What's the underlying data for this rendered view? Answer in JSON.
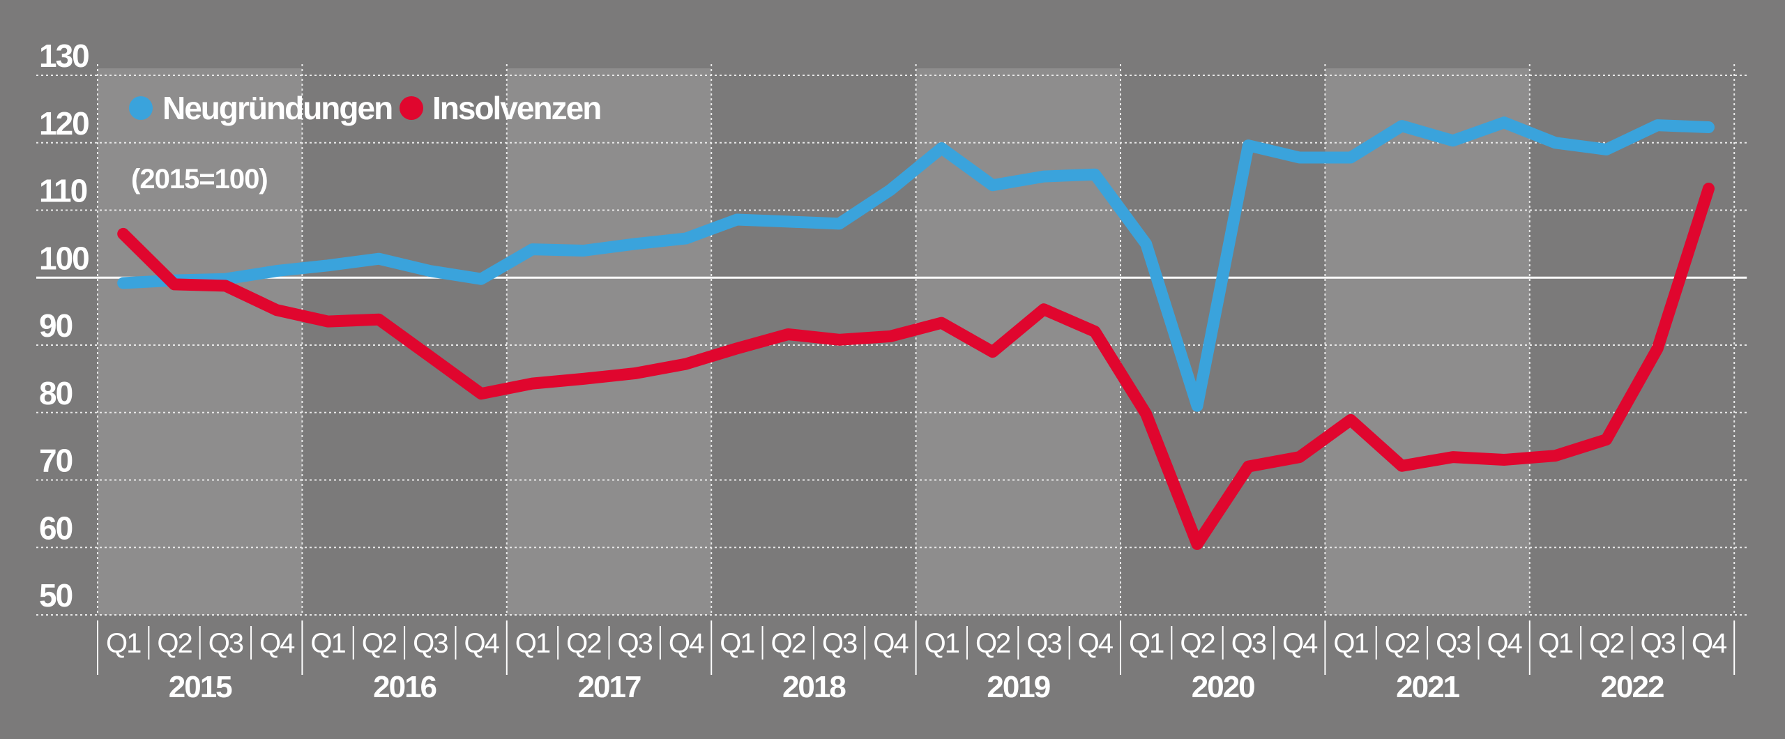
{
  "chart_data": {
    "type": "line",
    "subtitle": "(2015=100)",
    "ylim": [
      50,
      130
    ],
    "yticks": [
      50,
      60,
      70,
      80,
      90,
      100,
      110,
      120,
      130
    ],
    "reference_line": 100,
    "years": [
      "2015",
      "2016",
      "2017",
      "2018",
      "2019",
      "2020",
      "2021",
      "2022"
    ],
    "quarters": [
      "Q1",
      "Q2",
      "Q3",
      "Q4"
    ],
    "categories": [
      "2015 Q1",
      "2015 Q2",
      "2015 Q3",
      "2015 Q4",
      "2016 Q1",
      "2016 Q2",
      "2016 Q3",
      "2016 Q4",
      "2017 Q1",
      "2017 Q2",
      "2017 Q3",
      "2017 Q4",
      "2018 Q1",
      "2018 Q2",
      "2018 Q3",
      "2018 Q4",
      "2019 Q1",
      "2019 Q2",
      "2019 Q3",
      "2019 Q4",
      "2020 Q1",
      "2020 Q2",
      "2020 Q3",
      "2020 Q4",
      "2021 Q1",
      "2021 Q2",
      "2021 Q3",
      "2021 Q4",
      "2022 Q1",
      "2022 Q2",
      "2022 Q3",
      "2022 Q4"
    ],
    "series": [
      {
        "name": "Neugründungen",
        "color": "#3aa3dc",
        "values": [
          99.2,
          99.6,
          99.8,
          101.0,
          101.8,
          102.8,
          101.0,
          99.8,
          104.2,
          104.0,
          105.0,
          105.8,
          108.6,
          108.3,
          108.0,
          113.0,
          119.2,
          113.7,
          115.0,
          115.3,
          105.0,
          81.0,
          119.6,
          117.8,
          117.8,
          122.5,
          120.3,
          123.0,
          120.0,
          119.0,
          122.6,
          122.3
        ]
      },
      {
        "name": "Insolvenzen",
        "color": "#e0062e",
        "values": [
          106.5,
          99.0,
          98.8,
          95.2,
          93.5,
          93.8,
          88.3,
          82.8,
          84.3,
          85.0,
          85.8,
          87.2,
          89.5,
          91.6,
          90.8,
          91.3,
          93.3,
          89.0,
          95.3,
          92.0,
          79.8,
          60.5,
          72.0,
          73.4,
          78.9,
          72.1,
          73.4,
          73.0,
          73.6,
          76.0,
          89.5,
          113.2
        ]
      }
    ]
  }
}
